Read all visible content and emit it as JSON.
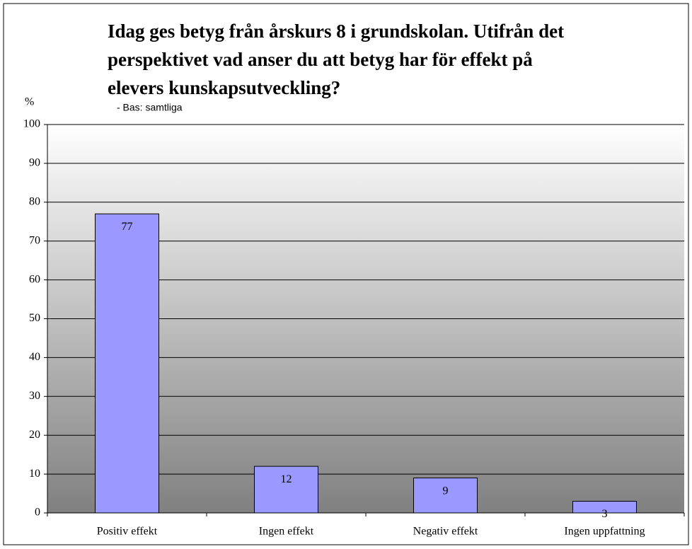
{
  "chart_data": {
    "type": "bar",
    "title": [
      "Idag ges betyg från årskurs 8 i grundskolan. Utifrån det",
      "perspektivet vad anser du att betyg har för effekt på",
      "elevers kunskapsutveckling?"
    ],
    "subtitle": "- Bas: samtliga",
    "y_label": "%",
    "categories": [
      "Positiv effekt",
      "Ingen effekt",
      "Negativ effekt",
      "Ingen uppfattning"
    ],
    "values": [
      77,
      12,
      9,
      3
    ],
    "color": "#9999ff",
    "ylim": [
      0,
      100
    ],
    "yticks": [
      0,
      10,
      20,
      30,
      40,
      50,
      60,
      70,
      80,
      90,
      100
    ],
    "grid": true
  }
}
